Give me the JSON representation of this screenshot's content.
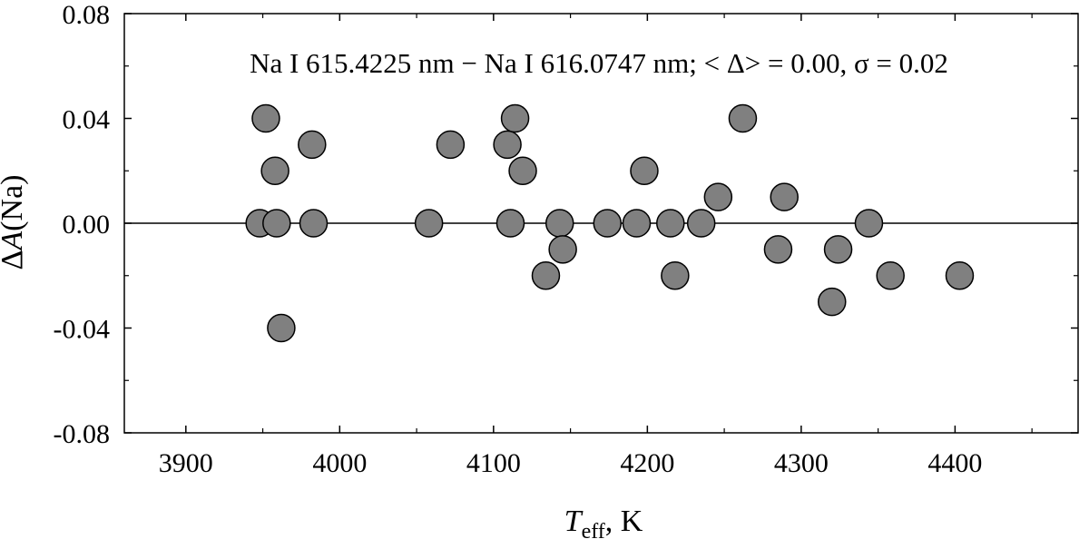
{
  "chart_data": {
    "type": "scatter",
    "title": "",
    "annotation": "Na I 615.4225 nm  − Na I 616.0747 nm; < Δ> = 0.00,  σ = 0.02",
    "xlabel": {
      "main": "T",
      "sub": "eff",
      "suffix": ", K"
    },
    "ylabel": {
      "prefix": "Δ",
      "italic": "A",
      "suffix": "(Na)"
    },
    "xlim": [
      3860,
      4480
    ],
    "ylim": [
      -0.08,
      0.08
    ],
    "xticks": [
      3900,
      4000,
      4100,
      4200,
      4300,
      4400
    ],
    "yticks": [
      -0.08,
      -0.04,
      0.0,
      0.04,
      0.08
    ],
    "xtick_labels": [
      "3900",
      "4000",
      "4100",
      "4200",
      "4300",
      "4400"
    ],
    "ytick_labels": [
      "-0.08",
      "-0.04",
      "0.00",
      "0.04",
      "0.08"
    ],
    "reference_line_y": 0.0,
    "grid": false,
    "marker_color": "#808080",
    "marker_edge_color": "#000000",
    "points": [
      {
        "x": 3948,
        "y": 0.0
      },
      {
        "x": 3952,
        "y": 0.04
      },
      {
        "x": 3958,
        "y": 0.02
      },
      {
        "x": 3959,
        "y": 0.0
      },
      {
        "x": 3962,
        "y": -0.04
      },
      {
        "x": 3982,
        "y": 0.03
      },
      {
        "x": 3983,
        "y": 0.0
      },
      {
        "x": 4058,
        "y": 0.0
      },
      {
        "x": 4072,
        "y": 0.03
      },
      {
        "x": 4109,
        "y": 0.03
      },
      {
        "x": 4111,
        "y": 0.0
      },
      {
        "x": 4114,
        "y": 0.04
      },
      {
        "x": 4119,
        "y": 0.02
      },
      {
        "x": 4134,
        "y": -0.02
      },
      {
        "x": 4143,
        "y": 0.0
      },
      {
        "x": 4145,
        "y": -0.01
      },
      {
        "x": 4174,
        "y": 0.0
      },
      {
        "x": 4193,
        "y": 0.0
      },
      {
        "x": 4198,
        "y": 0.02
      },
      {
        "x": 4215,
        "y": 0.0
      },
      {
        "x": 4218,
        "y": -0.02
      },
      {
        "x": 4235,
        "y": 0.0
      },
      {
        "x": 4246,
        "y": 0.01
      },
      {
        "x": 4262,
        "y": 0.04
      },
      {
        "x": 4285,
        "y": -0.01
      },
      {
        "x": 4289,
        "y": 0.01
      },
      {
        "x": 4320,
        "y": -0.03
      },
      {
        "x": 4324,
        "y": -0.01
      },
      {
        "x": 4344,
        "y": 0.0
      },
      {
        "x": 4358,
        "y": -0.02
      },
      {
        "x": 4403,
        "y": -0.02
      }
    ]
  }
}
